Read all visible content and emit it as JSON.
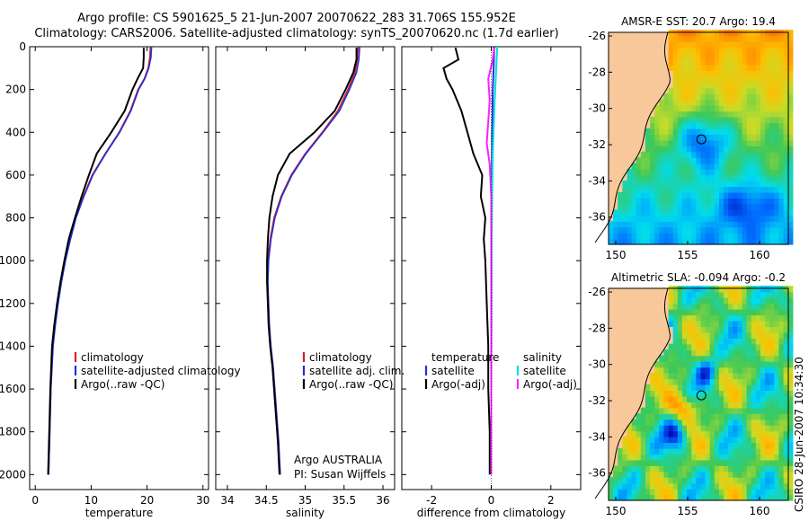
{
  "header": {
    "line1": "Argo profile: CS 5901625_5 21-Jun-2007 20070622_283 31.706S 155.952E",
    "line2": "Climatology: CARS2006. Satellite-adjusted climatology: synTS_20070620.nc (1.7d earlier)"
  },
  "footer": {
    "credit": "Argo AUSTRALIA",
    "pi": "PI: Susan Wijffels",
    "stamp": "CSIRO 28-Jun-2007 10:34:30"
  },
  "colors": {
    "climatology": "#d62020",
    "satellite": "#1f2fd8",
    "argo": "#000000",
    "sat_salinity": "#00e0e0",
    "argo_salinity": "#ff20ff",
    "land": "#f8c89a"
  },
  "chart_data": [
    {
      "type": "line",
      "xlabel": "temperature",
      "xlim": [
        -1,
        31
      ],
      "ylim": [
        2070,
        0
      ],
      "xticks": [
        "0",
        "10",
        "20",
        "30"
      ],
      "yticks": [
        "0",
        "200",
        "400",
        "600",
        "800",
        "1000",
        "1200",
        "1400",
        "1600",
        "1800",
        "2000"
      ],
      "legend": [
        "climatology",
        "satellite-adjusted climatology",
        "Argo(..raw -QC)"
      ],
      "series": [
        {
          "name": "climatology",
          "x": [
            20.6,
            20.5,
            20.2,
            19.5,
            18.4,
            17.0,
            15.0,
            12.5,
            10.2,
            8.6,
            7.2,
            6.2,
            5.3,
            4.6,
            4.0,
            3.5,
            3.1,
            2.8,
            2.6,
            2.4
          ],
          "y": [
            0,
            50,
            100,
            150,
            200,
            300,
            400,
            500,
            600,
            700,
            800,
            900,
            1000,
            1100,
            1200,
            1300,
            1400,
            1600,
            1800,
            2000
          ]
        },
        {
          "name": "satellite-adjusted climatology",
          "x": [
            20.8,
            20.7,
            20.3,
            19.6,
            18.5,
            17.1,
            15.1,
            12.6,
            10.3,
            8.7,
            7.3,
            6.3,
            5.4,
            4.7,
            4.1,
            3.6,
            3.2,
            2.8,
            2.6,
            2.4
          ],
          "y": [
            0,
            50,
            100,
            150,
            200,
            300,
            400,
            500,
            600,
            700,
            800,
            900,
            1000,
            1100,
            1200,
            1300,
            1400,
            1600,
            1800,
            2000
          ]
        },
        {
          "name": "Argo(..raw -QC)",
          "x": [
            19.4,
            19.4,
            19.3,
            18.3,
            17.4,
            16.0,
            13.6,
            11.0,
            9.6,
            8.3,
            7.1,
            6.0,
            5.2,
            4.5,
            3.9,
            3.4,
            3.0,
            2.7,
            2.5,
            2.3
          ],
          "y": [
            5,
            50,
            100,
            150,
            200,
            300,
            400,
            500,
            600,
            700,
            800,
            900,
            1000,
            1100,
            1200,
            1300,
            1400,
            1600,
            1800,
            2000
          ]
        }
      ]
    },
    {
      "type": "line",
      "xlabel": "salinity",
      "xlim": [
        33.85,
        36.15
      ],
      "ylim": [
        2070,
        0
      ],
      "xticks": [
        "34",
        "34.5",
        "35",
        "35.5",
        "36"
      ],
      "legend": [
        "climatology",
        "satellite adj. clim.",
        "Argo(..raw -QC)"
      ],
      "series": [
        {
          "name": "climatology",
          "x": [
            35.68,
            35.67,
            35.64,
            35.55,
            35.42,
            35.22,
            35.0,
            34.82,
            34.69,
            34.6,
            34.55,
            34.52,
            34.51,
            34.52,
            34.53,
            34.55,
            34.58,
            34.62,
            34.65,
            34.68
          ],
          "y": [
            0,
            60,
            120,
            200,
            300,
            400,
            500,
            600,
            700,
            800,
            900,
            1000,
            1100,
            1200,
            1300,
            1400,
            1500,
            1700,
            1850,
            2000
          ]
        },
        {
          "name": "satellite adj. clim.",
          "x": [
            35.7,
            35.69,
            35.66,
            35.57,
            35.44,
            35.23,
            35.01,
            34.83,
            34.7,
            34.61,
            34.56,
            34.53,
            34.52,
            34.53,
            34.54,
            34.56,
            34.59,
            34.63,
            34.66,
            34.68
          ],
          "y": [
            0,
            60,
            120,
            200,
            300,
            400,
            500,
            600,
            700,
            800,
            900,
            1000,
            1100,
            1200,
            1300,
            1400,
            1500,
            1700,
            1850,
            2000
          ]
        },
        {
          "name": "Argo(..raw -QC)",
          "x": [
            35.66,
            35.66,
            35.62,
            35.52,
            35.38,
            35.12,
            34.8,
            34.65,
            34.58,
            34.54,
            34.52,
            34.51,
            34.51,
            34.52,
            34.53,
            34.55,
            34.58,
            34.62,
            34.65,
            34.67
          ],
          "y": [
            5,
            60,
            120,
            200,
            300,
            400,
            500,
            600,
            700,
            800,
            900,
            1000,
            1100,
            1200,
            1300,
            1400,
            1500,
            1700,
            1850,
            2000
          ]
        }
      ]
    },
    {
      "type": "line",
      "xlabel": "difference from climatology",
      "xlim": [
        -3,
        3
      ],
      "ylim": [
        2070,
        0
      ],
      "xticks": [
        "-2",
        "0",
        "2"
      ],
      "legend_left": [
        "temperature",
        "satellite",
        "Argo(-adj)"
      ],
      "legend_right": [
        "salinity",
        "satellite",
        "Argo(-adj)"
      ],
      "series": [
        {
          "name": "temperature satellite",
          "x": [
            0.1,
            0.08,
            0.05,
            0.03,
            0.02,
            0.01,
            0.0,
            0.0
          ],
          "y": [
            0,
            100,
            200,
            400,
            600,
            1000,
            1500,
            2000
          ]
        },
        {
          "name": "temperature Argo(-adj)",
          "x": [
            -1.2,
            -1.1,
            -1.6,
            -1.5,
            -1.3,
            -1.0,
            -0.8,
            -0.6,
            -0.3,
            -0.35,
            -0.2,
            -0.25,
            -0.2,
            -0.15,
            -0.1,
            -0.1,
            -0.05,
            -0.05,
            -0.05
          ],
          "y": [
            5,
            60,
            100,
            150,
            200,
            300,
            400,
            500,
            600,
            700,
            800,
            900,
            1000,
            1200,
            1400,
            1600,
            1800,
            1900,
            2000
          ]
        },
        {
          "name": "salinity satellite",
          "x": [
            0.2,
            0.18,
            0.15,
            0.1,
            0.05,
            0.02,
            0.01,
            0.0,
            0.0
          ],
          "y": [
            0,
            60,
            150,
            300,
            500,
            800,
            1200,
            1600,
            2000
          ]
        },
        {
          "name": "salinity Argo(-adj)",
          "x": [
            0.1,
            0.05,
            -0.1,
            -0.05,
            -0.1,
            -0.15,
            -0.05,
            0.0,
            0.0,
            0.0,
            0.0
          ],
          "y": [
            5,
            60,
            150,
            250,
            350,
            450,
            550,
            700,
            1000,
            1500,
            2000
          ]
        }
      ]
    },
    {
      "type": "heatmap",
      "title": "AMSR-E SST: 20.7  Argo: 19.4",
      "xlim": [
        149.5,
        162
      ],
      "ylim": [
        -37.5,
        -25.8
      ],
      "xticks": [
        "150",
        "155",
        "160"
      ],
      "yticks": [
        "-26",
        "-28",
        "-30",
        "-32",
        "-34",
        "-36"
      ],
      "marker": {
        "lon": 155.952,
        "lat": -31.706
      }
    },
    {
      "type": "heatmap",
      "title": "Altimetric SLA: -0.094  Argo: -0.2",
      "xlim": [
        149.5,
        162
      ],
      "ylim": [
        -37.5,
        -25.8
      ],
      "xticks": [
        "150",
        "155",
        "160"
      ],
      "yticks": [
        "-26",
        "-28",
        "-30",
        "-32",
        "-34",
        "-36"
      ],
      "marker": {
        "lon": 155.952,
        "lat": -31.706
      }
    }
  ]
}
